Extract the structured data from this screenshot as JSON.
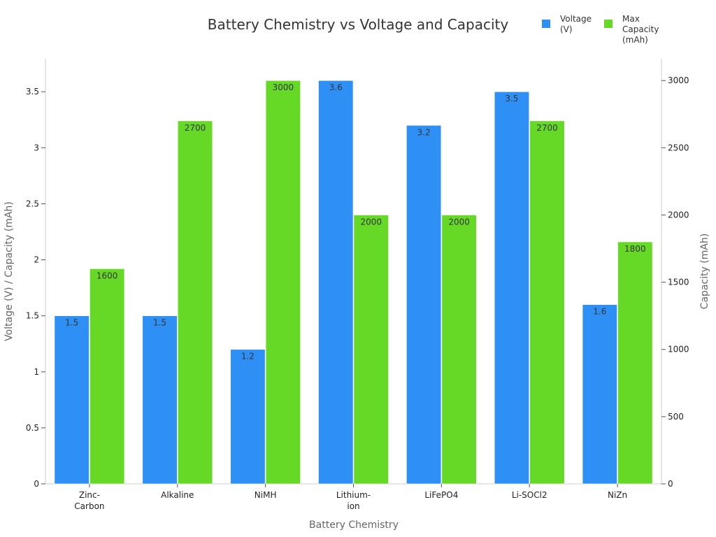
{
  "chart_data": {
    "type": "bar",
    "title": "Battery Chemistry vs Voltage and Capacity",
    "xlabel": "Battery Chemistry",
    "ylabel_left": "Voltage (V) / Capacity (mAh)",
    "ylabel_right": "Capacity (mAh)",
    "categories": [
      [
        "Zinc-",
        "Carbon"
      ],
      [
        "Alkaline"
      ],
      [
        "NiMH"
      ],
      [
        "Lithium-",
        "ion"
      ],
      [
        "LiFePO4"
      ],
      [
        "Li-SOCl2"
      ],
      [
        "NiZn"
      ]
    ],
    "series": [
      {
        "name": [
          "Voltage",
          "(V)"
        ],
        "axis": "left",
        "color": "#2e90f5",
        "values": [
          1.5,
          1.5,
          1.2,
          3.6,
          3.2,
          3.5,
          1.6
        ]
      },
      {
        "name": [
          "Max",
          "Capacity",
          "(mAh)"
        ],
        "axis": "right",
        "color": "#66d926",
        "values": [
          1600,
          2700,
          3000,
          2000,
          2000,
          2700,
          1800
        ]
      }
    ],
    "ylim_left": [
      0,
      3.6
    ],
    "ylim_right": [
      0,
      3000
    ],
    "yticks_left": [
      "0",
      "0.5",
      "1",
      "1.5",
      "2",
      "2.5",
      "3",
      "3.5"
    ],
    "yticks_left_values": [
      0,
      0.5,
      1,
      1.5,
      2,
      2.5,
      3,
      3.5
    ],
    "yticks_right": [
      "0",
      "500",
      "1000",
      "1500",
      "2000",
      "2500",
      "3000"
    ],
    "yticks_right_values": [
      0,
      500,
      1000,
      1500,
      2000,
      2500,
      3000
    ],
    "legend_position": "top-right",
    "grid": false
  }
}
